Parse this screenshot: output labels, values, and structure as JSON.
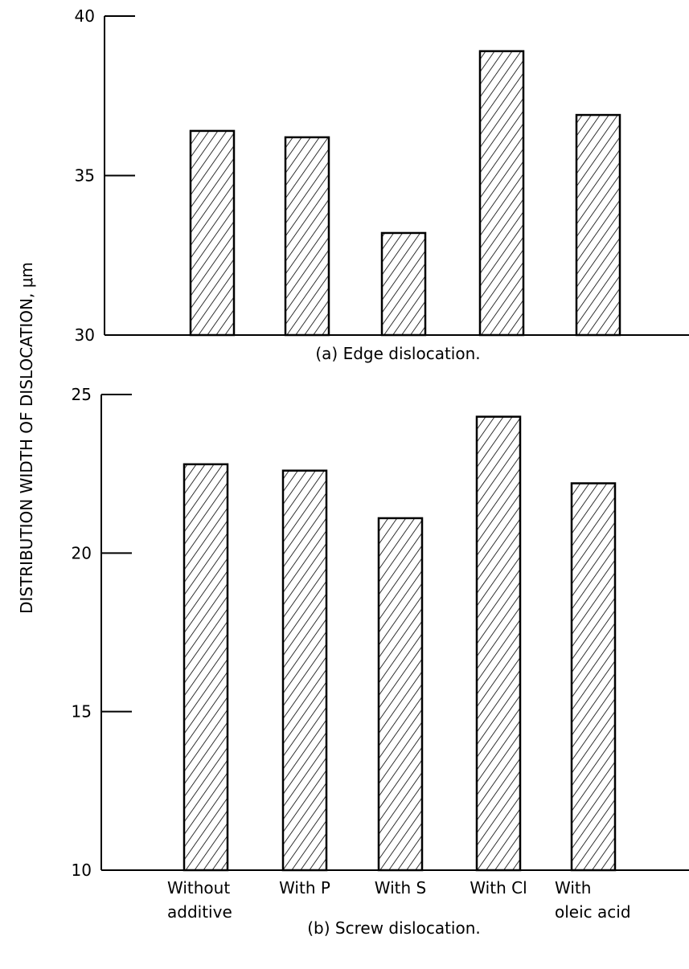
{
  "shared_ylabel": "DISTRIBUTION WIDTH OF DISLOCATION, μm",
  "categories": [
    [
      "Without",
      "additive"
    ],
    [
      "With P"
    ],
    [
      "With S"
    ],
    [
      "With Cl"
    ],
    [
      "With",
      "oleic acid"
    ]
  ],
  "chart_data": [
    {
      "type": "bar",
      "caption": "(a) Edge dislocation.",
      "categories": [
        "Without additive",
        "With P",
        "With S",
        "With Cl",
        "With oleic acid"
      ],
      "values": [
        36.4,
        36.2,
        33.2,
        38.9,
        36.9
      ],
      "ylim": [
        30,
        40
      ],
      "yticks": [
        30,
        35,
        40
      ],
      "ylabel": "DISTRIBUTION WIDTH OF DISLOCATION, μm",
      "bar_fill": "hatched",
      "grid": false
    },
    {
      "type": "bar",
      "caption": "(b) Screw dislocation.",
      "categories": [
        "Without additive",
        "With P",
        "With S",
        "With Cl",
        "With oleic acid"
      ],
      "values": [
        22.8,
        22.6,
        21.1,
        24.3,
        22.2
      ],
      "ylim": [
        10,
        25
      ],
      "yticks": [
        10,
        15,
        20,
        25
      ],
      "ylabel": "DISTRIBUTION WIDTH OF DISLOCATION, μm",
      "bar_fill": "hatched",
      "grid": false
    }
  ]
}
